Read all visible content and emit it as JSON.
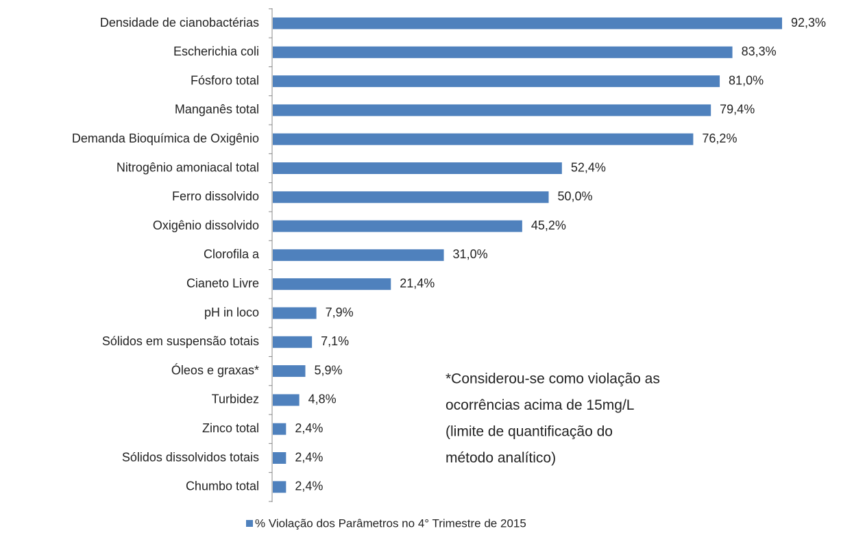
{
  "chart_data": {
    "type": "hbar",
    "categories": [
      "Densidade de cianobactérias",
      "Escherichia coli",
      "Fósforo total",
      "Manganês total",
      "Demanda Bioquímica de Oxigênio",
      "Nitrogênio amoniacal total",
      "Ferro dissolvido",
      "Oxigênio dissolvido",
      "Clorofila a",
      "Cianeto Livre",
      "pH in loco",
      "Sólidos em suspensão totais",
      "Óleos e graxas*",
      "Turbidez",
      "Zinco total",
      "Sólidos dissolvidos totais",
      "Chumbo total"
    ],
    "series": [
      {
        "name": "% Violação dos Parâmetros no 4° Trimestre de 2015",
        "color": "#4f81bd",
        "values": [
          92.3,
          83.3,
          81.0,
          79.4,
          76.2,
          52.4,
          50.0,
          45.2,
          31.0,
          21.4,
          7.9,
          7.1,
          5.9,
          4.8,
          2.4,
          2.4,
          2.4
        ],
        "value_labels": [
          "92,3%",
          "83,3%",
          "81,0%",
          "79,4%",
          "76,2%",
          "52,4%",
          "50,0%",
          "45,2%",
          "31,0%",
          "21,4%",
          "7,9%",
          "7,1%",
          "5,9%",
          "4,8%",
          "2,4%",
          "2,4%",
          "2,4%"
        ]
      }
    ],
    "annotation": [
      "*Considerou-se como violação as",
      "ocorrências acima de 15mg/L",
      "(limite de quantificação do",
      "método analítico)"
    ],
    "legend": "bottom"
  }
}
